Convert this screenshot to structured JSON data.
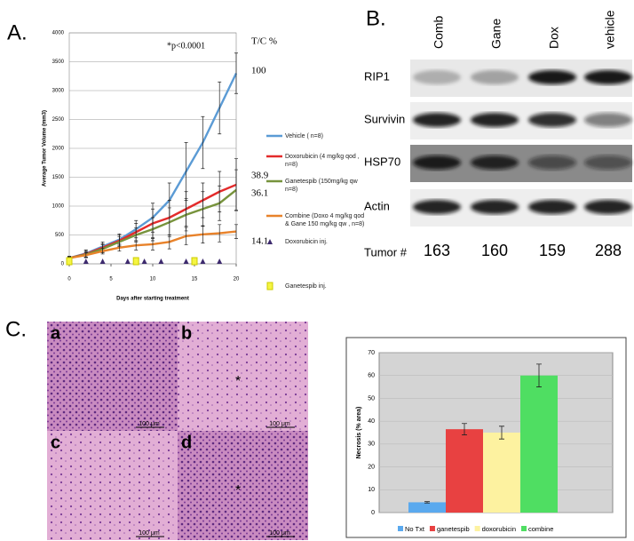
{
  "panel_labels": [
    "A.",
    "B.",
    "C."
  ],
  "chart_data": [
    {
      "type": "line",
      "annotation": "*p<0.0001",
      "tc_header": "T/C %",
      "ylabel": "Average Tumor Volume (mm3)",
      "xlabel": "Days after starting treatment",
      "x": [
        0,
        2,
        4,
        6,
        8,
        10,
        12,
        14,
        16,
        18,
        20
      ],
      "xlim": [
        0,
        20
      ],
      "xticks": [
        0,
        5,
        10,
        15,
        20
      ],
      "ylim": [
        0,
        4000
      ],
      "yticks": [
        0,
        500,
        1000,
        1500,
        2000,
        2500,
        3000,
        3500,
        4000
      ],
      "grid": true,
      "series": [
        {
          "name": "Vehicle ( n=8)",
          "color": "#5b9bd5",
          "tc": 100,
          "values": [
            100,
            180,
            300,
            420,
            600,
            800,
            1100,
            1600,
            2100,
            2700,
            3300
          ],
          "errors": [
            30,
            60,
            80,
            100,
            150,
            250,
            300,
            500,
            450,
            450,
            350
          ]
        },
        {
          "name": "Doxorubicin (4 mg/kg qod , n=8)",
          "color": "#e32b2b",
          "tc": 38.9,
          "values": [
            100,
            170,
            280,
            400,
            550,
            700,
            800,
            950,
            1100,
            1250,
            1370
          ],
          "errors": [
            30,
            60,
            70,
            100,
            150,
            250,
            300,
            300,
            300,
            350,
            450
          ]
        },
        {
          "name": "Ganetespib (150mg/kg qw n=8)",
          "color": "#77933c",
          "tc": 36.1,
          "values": [
            100,
            160,
            260,
            380,
            500,
            600,
            720,
            850,
            950,
            1050,
            1280
          ],
          "errors": [
            30,
            50,
            70,
            90,
            120,
            200,
            250,
            280,
            300,
            300,
            350
          ]
        },
        {
          "name": "Combine (Doxo 4 mg/kg qod & Gane 150 mg/kg qw , n=8)",
          "color": "#e8822a",
          "tc": 14.1,
          "values": [
            100,
            150,
            220,
            280,
            320,
            340,
            380,
            480,
            510,
            530,
            560
          ],
          "errors": [
            20,
            40,
            50,
            60,
            80,
            100,
            120,
            150,
            150,
            150,
            120
          ]
        }
      ],
      "injections": [
        {
          "name": "Doxorubicin inj.",
          "color": "#3d2a6e",
          "shape": "triangle",
          "x": [
            0,
            2,
            4,
            7,
            9,
            11,
            14,
            16,
            18
          ]
        },
        {
          "name": "Ganetespib inj.",
          "color": "#f5f542",
          "shape": "square",
          "x": [
            0,
            8,
            15
          ]
        }
      ]
    },
    {
      "type": "bar",
      "ylabel": "Necrosis (% area)",
      "categories": [
        "No Txt",
        "ganetespib",
        "doxorubicin",
        "combine"
      ],
      "colors": [
        "#5aa9ee",
        "#e84141",
        "#fdf2a0",
        "#4fde62"
      ],
      "values": [
        4.5,
        36.5,
        35,
        60
      ],
      "errors": [
        0.3,
        2.5,
        2.8,
        5
      ],
      "ylim": [
        0,
        70
      ],
      "yticks": [
        0,
        10,
        20,
        30,
        40,
        50,
        60,
        70
      ],
      "grid": true
    }
  ],
  "blot": {
    "columns": [
      "Comb",
      "Gane",
      "Dox",
      "vehicle"
    ],
    "rows": [
      "RIP1",
      "Survivin",
      "HSP70",
      "Actin"
    ],
    "tumor_label": "Tumor #",
    "tumors": [
      163,
      160,
      159,
      288
    ]
  },
  "histology": {
    "panels": [
      {
        "label": "a",
        "scale": "100 μm"
      },
      {
        "label": "b",
        "scale": "100 μm",
        "mark": "*"
      },
      {
        "label": "c",
        "scale": "100 μm"
      },
      {
        "label": "d",
        "scale": "100 μm",
        "mark": "*"
      }
    ]
  }
}
